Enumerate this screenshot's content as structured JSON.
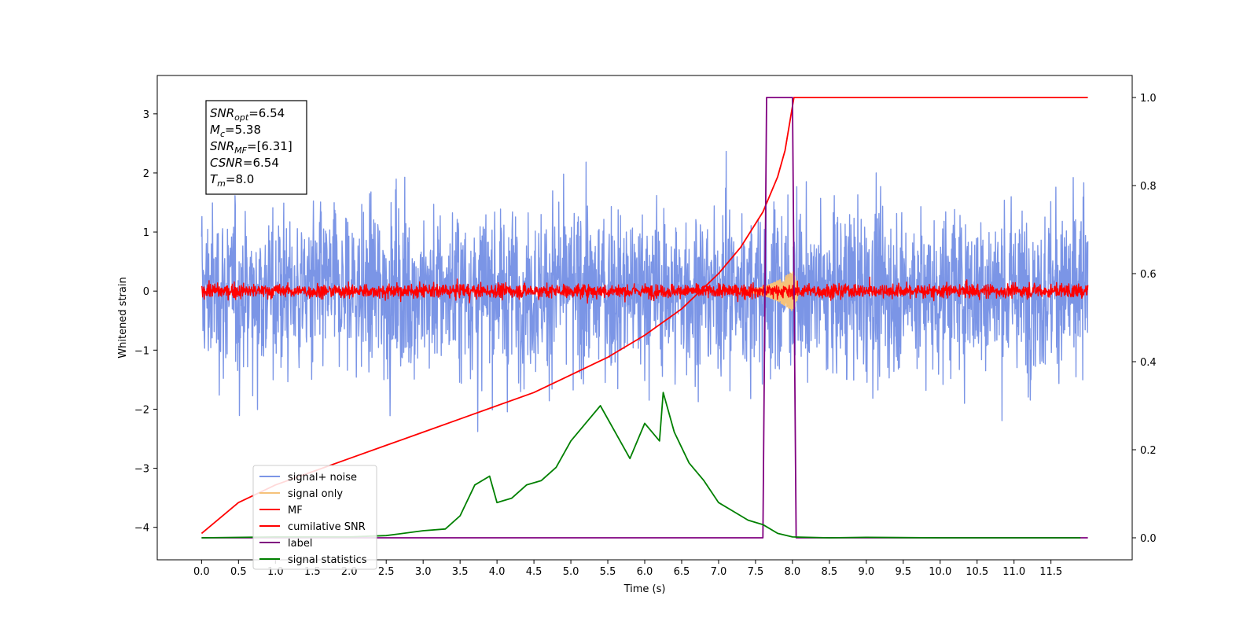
{
  "chart_data": {
    "type": "line",
    "xlabel": "Time (s)",
    "ylabel": "Whitened strain",
    "xlim": [
      -0.6,
      12.6
    ],
    "ylim": [
      -4.55,
      3.65
    ],
    "y2lim": [
      -0.05,
      1.05
    ],
    "x_ticks": [
      0.0,
      0.5,
      1.0,
      1.5,
      2.0,
      2.5,
      3.0,
      3.5,
      4.0,
      4.5,
      5.0,
      5.5,
      6.0,
      6.5,
      7.0,
      7.5,
      8.0,
      8.5,
      9.0,
      9.5,
      10.0,
      10.5,
      11.0,
      11.5
    ],
    "x_tick_labels": [
      "0.0",
      "0.5",
      "1.0",
      "1.5",
      "2.0",
      "2.5",
      "3.0",
      "3.5",
      "4.0",
      "4.5",
      "5.0",
      "5.5",
      "6.0",
      "6.5",
      "7.0",
      "7.5",
      "8.0",
      "8.5",
      "9.0",
      "9.5",
      "10.0",
      "10.5",
      "11.0",
      "11.5"
    ],
    "y_ticks": [
      -4,
      -3,
      -2,
      -1,
      0,
      1,
      2,
      3
    ],
    "y_tick_labels": [
      "−4",
      "−3",
      "−2",
      "−1",
      "0",
      "1",
      "2",
      "3"
    ],
    "y2_ticks": [
      0.0,
      0.2,
      0.4,
      0.6,
      0.8,
      1.0
    ],
    "y2_tick_labels": [
      "0.0",
      "0.2",
      "0.4",
      "0.6",
      "0.8",
      "1.0"
    ],
    "grid": false,
    "legend_position": "lower-left",
    "annotation": [
      {
        "base": "SNR",
        "sub": "opt",
        "rest": "=6.54"
      },
      {
        "base": "M",
        "sub": "c",
        "rest": "=5.38"
      },
      {
        "base": "SNR",
        "sub": "MF",
        "rest": "=[6.31]"
      },
      {
        "base": "CSNR",
        "sub": "",
        "rest": "=6.54"
      },
      {
        "base": "T",
        "sub": "m",
        "rest": "=8.0"
      }
    ],
    "series": [
      {
        "name": "signal+ noise",
        "color": "#7b95e6",
        "axis": "left",
        "kind": "noise",
        "x_range": [
          0,
          12
        ],
        "envelope": [
          -2.3,
          2.4
        ],
        "clip": [
          -4.1,
          3.28
        ]
      },
      {
        "name": "signal only",
        "color": "#f5c27a",
        "axis": "left",
        "kind": "chirp",
        "x_range": [
          7.0,
          8.1
        ],
        "peak": 0.45
      },
      {
        "name": "MF",
        "color": "#ff0000",
        "axis": "left",
        "kind": "noise",
        "x_range": [
          0,
          12
        ],
        "envelope": [
          -0.2,
          0.2
        ],
        "clip": [
          -0.3,
          0.45
        ]
      },
      {
        "name": "cumilative SNR",
        "color": "#ff0000",
        "axis": "right",
        "x": [
          0.0,
          0.5,
          1.0,
          1.5,
          2.0,
          2.5,
          3.0,
          3.5,
          4.0,
          4.5,
          5.0,
          5.5,
          6.0,
          6.5,
          7.0,
          7.3,
          7.6,
          7.8,
          7.9,
          8.0,
          8.02,
          12.0
        ],
        "y": [
          0.01,
          0.08,
          0.12,
          0.15,
          0.18,
          0.21,
          0.24,
          0.27,
          0.3,
          0.33,
          0.37,
          0.41,
          0.46,
          0.52,
          0.6,
          0.66,
          0.74,
          0.82,
          0.88,
          0.98,
          1.0,
          1.0
        ]
      },
      {
        "name": "label",
        "color": "#800080",
        "axis": "right",
        "x": [
          0.0,
          7.6,
          7.65,
          8.0,
          8.05,
          12.0
        ],
        "y": [
          0.0,
          0.0,
          1.0,
          1.0,
          0.0,
          0.0
        ]
      },
      {
        "name": "signal statistics",
        "color": "#008000",
        "axis": "right",
        "x": [
          0.0,
          1.0,
          2.0,
          2.5,
          3.0,
          3.3,
          3.5,
          3.7,
          3.9,
          4.0,
          4.2,
          4.4,
          4.6,
          4.8,
          5.0,
          5.2,
          5.4,
          5.6,
          5.8,
          6.0,
          6.2,
          6.25,
          6.4,
          6.6,
          6.8,
          7.0,
          7.2,
          7.4,
          7.6,
          7.8,
          8.0,
          8.5,
          9.0,
          10.0,
          11.0,
          11.9
        ],
        "y": [
          0.0,
          0.002,
          0.002,
          0.005,
          0.016,
          0.02,
          0.05,
          0.12,
          0.14,
          0.08,
          0.09,
          0.12,
          0.13,
          0.16,
          0.22,
          0.26,
          0.3,
          0.24,
          0.18,
          0.26,
          0.22,
          0.33,
          0.24,
          0.17,
          0.13,
          0.08,
          0.06,
          0.04,
          0.03,
          0.01,
          0.002,
          0.0,
          0.001,
          0.0,
          0.0,
          0.0
        ]
      }
    ]
  }
}
